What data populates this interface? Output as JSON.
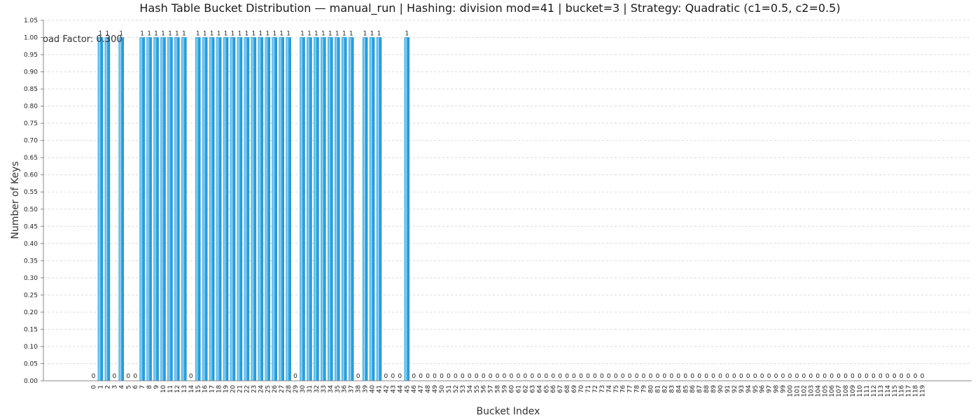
{
  "chart_data": {
    "type": "bar",
    "title": "Hash Table Bucket Distribution — manual_run | Hashing: division mod=41 | bucket=3 | Strategy: Quadratic (c1=0.5, c2=0.5)",
    "annotation": "Load Factor: 0.300",
    "xlabel": "Bucket Index",
    "ylabel": "Number of Keys",
    "ylim": [
      0,
      1.05
    ],
    "ytick_step": 0.05,
    "grid": true,
    "bar_color": "#3aaee8",
    "categories": [
      "0",
      "1",
      "2",
      "3",
      "4",
      "5",
      "6",
      "7",
      "8",
      "9",
      "10",
      "11",
      "12",
      "13",
      "14",
      "15",
      "16",
      "17",
      "18",
      "19",
      "20",
      "21",
      "22",
      "23",
      "24",
      "25",
      "26",
      "27",
      "28",
      "29",
      "30",
      "31",
      "32",
      "33",
      "34",
      "35",
      "36",
      "37",
      "38",
      "39",
      "40",
      "41",
      "42",
      "43",
      "44",
      "45",
      "46",
      "47",
      "48",
      "49",
      "50",
      "51",
      "52",
      "53",
      "54",
      "55",
      "56",
      "57",
      "58",
      "59",
      "60",
      "61",
      "62",
      "63",
      "64",
      "65",
      "66",
      "67",
      "68",
      "69",
      "70",
      "71",
      "72",
      "73",
      "74",
      "75",
      "76",
      "77",
      "78",
      "79",
      "80",
      "81",
      "82",
      "83",
      "84",
      "85",
      "86",
      "87",
      "88",
      "89",
      "90",
      "91",
      "92",
      "93",
      "94",
      "95",
      "96",
      "97",
      "98",
      "99",
      "100",
      "101",
      "102",
      "103",
      "104",
      "105",
      "106",
      "107",
      "108",
      "109",
      "110",
      "111",
      "112",
      "113",
      "114",
      "115",
      "116",
      "117",
      "118",
      "119"
    ],
    "values": [
      0,
      1,
      1,
      0,
      1,
      0,
      0,
      1,
      1,
      1,
      1,
      1,
      1,
      1,
      0,
      1,
      1,
      1,
      1,
      1,
      1,
      1,
      1,
      1,
      1,
      1,
      1,
      1,
      1,
      0,
      1,
      1,
      1,
      1,
      1,
      1,
      1,
      1,
      0,
      1,
      1,
      1,
      0,
      0,
      0,
      1,
      0,
      0,
      0,
      0,
      0,
      0,
      0,
      0,
      0,
      0,
      0,
      0,
      0,
      0,
      0,
      0,
      0,
      0,
      0,
      0,
      0,
      0,
      0,
      0,
      0,
      0,
      0,
      0,
      0,
      0,
      0,
      0,
      0,
      0,
      0,
      0,
      0,
      0,
      0,
      0,
      0,
      0,
      0,
      0,
      0,
      0,
      0,
      0,
      0,
      0,
      0,
      0,
      0,
      0,
      0,
      0,
      0,
      0,
      0,
      0,
      0,
      0,
      0,
      0,
      0,
      0,
      0,
      0,
      0,
      0,
      0,
      0,
      0,
      0
    ]
  }
}
